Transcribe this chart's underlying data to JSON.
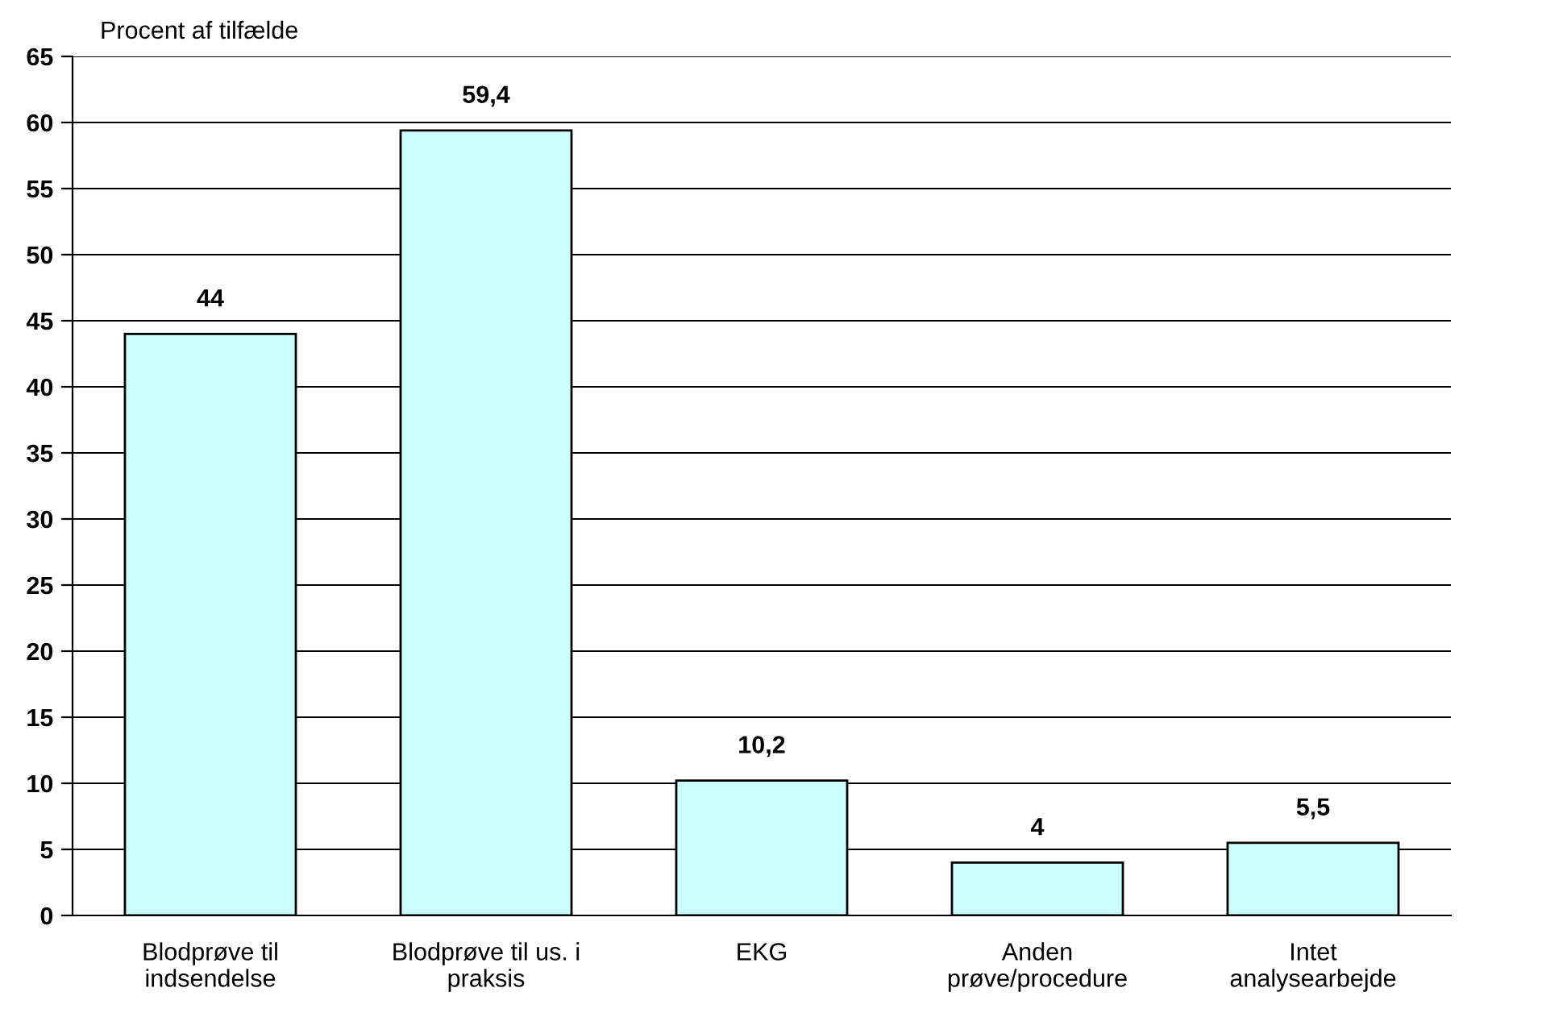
{
  "chart_data": {
    "type": "bar",
    "ylabel": "Procent af tilfælde",
    "categories": [
      "Blodprøve til\nindsendelse",
      "Blodprøve til us. i\npraksis",
      "EKG",
      "Anden\nprøve/procedure",
      "Intet\nanalysearbejde"
    ],
    "values": [
      44,
      59.4,
      10.2,
      4,
      5.5
    ],
    "value_labels": [
      "44",
      "59,4",
      "10,2",
      "4",
      "5,5"
    ],
    "color": "#ccffff",
    "ylim": [
      0,
      65
    ],
    "yticks": [
      0,
      5,
      10,
      15,
      20,
      25,
      30,
      35,
      40,
      45,
      50,
      55,
      60,
      65
    ],
    "grid": "y",
    "legend": false
  }
}
